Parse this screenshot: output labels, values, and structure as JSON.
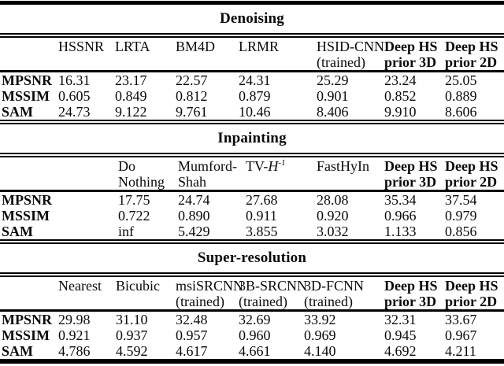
{
  "page": {
    "background": "#ffffff",
    "text_color": "#000000",
    "rule_color": "#000000"
  },
  "row_metric_labels": [
    "MPSNR",
    "MSSIM",
    "SAM"
  ],
  "sections": [
    {
      "title": "Denoising",
      "columns": [
        {
          "line1": "HSSNR",
          "line2": "",
          "bold": false
        },
        {
          "line1": "LRTA",
          "line2": "",
          "bold": false
        },
        {
          "line1": "BM4D",
          "line2": "",
          "bold": false
        },
        {
          "line1": "LRMR",
          "line2": "",
          "bold": false
        },
        {
          "line1": "HSID-CNN",
          "line2": "(trained)",
          "bold": false
        },
        {
          "line1": "Deep HS",
          "line2": "prior 3D",
          "bold": true
        },
        {
          "line1": "Deep HS",
          "line2": "prior 2D",
          "bold": true
        }
      ],
      "rows": [
        {
          "label": "MPSNR",
          "values": [
            "16.31",
            "23.17",
            "22.57",
            "24.31",
            "25.29",
            "23.24",
            "25.05"
          ]
        },
        {
          "label": "MSSIM",
          "values": [
            "0.605",
            "0.849",
            "0.812",
            "0.879",
            "0.901",
            "0.852",
            "0.889"
          ]
        },
        {
          "label": "SAM",
          "values": [
            "24.73",
            "9.122",
            "9.761",
            "10.46",
            "8.406",
            "9.910",
            "8.606"
          ]
        }
      ]
    },
    {
      "title": "Inpainting",
      "columns": [
        {
          "line1": "Do",
          "line2": "Nothing",
          "bold": false
        },
        {
          "line1": "Mumford-",
          "line2": "Shah",
          "bold": false
        },
        {
          "line1": "TV-",
          "italic": "H",
          "sup": "-1",
          "line2": "",
          "bold": false
        },
        {
          "line1": "FastHyIn",
          "line2": "",
          "bold": false
        },
        {
          "line1": "Deep HS",
          "line2": "prior 3D",
          "bold": true
        },
        {
          "line1": "Deep HS",
          "line2": "prior 2D",
          "bold": true
        }
      ],
      "rows": [
        {
          "label": "MPSNR",
          "values": [
            "17.75",
            "24.74",
            "27.68",
            "28.08",
            "35.34",
            "37.54"
          ]
        },
        {
          "label": "MSSIM",
          "values": [
            "0.722",
            "0.890",
            "0.911",
            "0.920",
            "0.966",
            "0.979"
          ]
        },
        {
          "label": "SAM",
          "values": [
            "inf",
            "5.429",
            "3.855",
            "3.032",
            "1.133",
            "0.856"
          ]
        }
      ]
    },
    {
      "title": "Super-resolution",
      "columns": [
        {
          "line1": "Nearest",
          "line2": "",
          "bold": false
        },
        {
          "line1": "Bicubic",
          "line2": "",
          "bold": false
        },
        {
          "line1": "msiSRCNN",
          "line2": "(trained)",
          "bold": false
        },
        {
          "line1": "3B-SRCNN",
          "line2": "(trained)",
          "bold": false
        },
        {
          "line1": "3D-FCNN",
          "line2": "(trained)",
          "bold": false
        },
        {
          "line1": "Deep HS",
          "line2": "prior 3D",
          "bold": true
        },
        {
          "line1": "Deep HS",
          "line2": "prior 2D",
          "bold": true
        }
      ],
      "rows": [
        {
          "label": "MPSNR",
          "values": [
            "29.98",
            "31.10",
            "32.48",
            "32.69",
            "33.92",
            "32.31",
            "33.67"
          ]
        },
        {
          "label": "MSSIM",
          "values": [
            "0.921",
            "0.937",
            "0.957",
            "0.960",
            "0.969",
            "0.945",
            "0.967"
          ]
        },
        {
          "label": "SAM",
          "values": [
            "4.786",
            "4.592",
            "4.617",
            "4.661",
            "4.140",
            "4.692",
            "4.211"
          ]
        }
      ]
    }
  ]
}
